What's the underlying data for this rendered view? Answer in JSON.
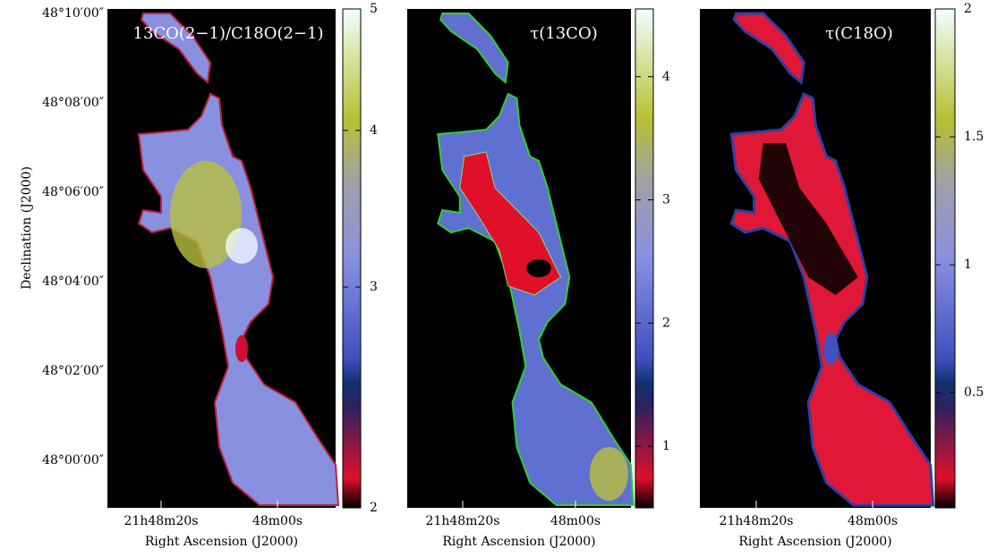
{
  "chart_data": [
    {
      "type": "map",
      "title": "13CO(2−1)/C18O(2−1)",
      "xtick_labels": [
        "21h48m20s",
        "48m00s"
      ],
      "ytick_labels": [
        "48°10′00″",
        "48°08′00″",
        "48°06′00″",
        "48°04′00″",
        "48°02′00″",
        "48°00′00″"
      ],
      "xlabel": "Right Ascension (J2000)",
      "ylabel": "Declination (J2000)",
      "colorbar": {
        "lim": [
          2,
          5
        ],
        "ticks": [
          2,
          3,
          4,
          5
        ],
        "log": true
      }
    },
    {
      "type": "map",
      "title": "τ(13CO)",
      "xtick_labels": [
        "21h48m20s",
        "48m00s"
      ],
      "xlabel": "Right Ascension (J2000)",
      "colorbar": {
        "lim": [
          0.5,
          4.55
        ],
        "ticks": [
          1,
          2,
          3,
          4
        ],
        "log": false
      }
    },
    {
      "type": "map",
      "title": "τ(C18O)",
      "xtick_labels": [
        "21h48m20s",
        "48m00s"
      ],
      "xlabel": "Right Ascension (J2000)",
      "colorbar": {
        "lim": [
          0.05,
          2
        ],
        "ticks": [
          0.5,
          1,
          1.5,
          2
        ],
        "log": false
      }
    }
  ]
}
